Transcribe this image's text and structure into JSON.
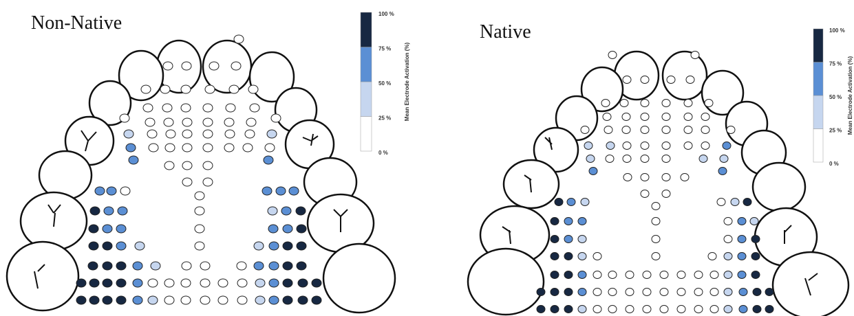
{
  "panels": [
    {
      "title": "Non-Native",
      "legend": {
        "title": "Mean Electrode Activation (%)",
        "ticks": [
          {
            "value": 100,
            "label": "100 %"
          },
          {
            "value": 75,
            "label": "75 %"
          },
          {
            "value": 50,
            "label": "50 %"
          },
          {
            "value": 25,
            "label": "25 %"
          },
          {
            "value": 0,
            "label": "0 %"
          }
        ]
      },
      "activation": [
        0,
        0,
        0,
        0,
        0,
        0,
        0,
        0,
        0,
        0,
        0,
        0,
        0,
        0,
        0,
        0,
        0,
        0,
        0,
        0,
        0,
        0,
        0,
        0,
        0,
        25,
        0,
        0,
        0,
        0,
        0,
        0,
        25,
        50,
        0,
        0,
        0,
        0,
        0,
        0,
        0,
        50,
        50,
        0,
        0,
        0,
        0,
        0,
        50,
        50,
        0,
        50,
        50,
        50,
        0,
        75,
        50,
        50,
        0,
        25,
        50,
        75,
        75,
        50,
        50,
        0,
        50,
        50,
        75,
        75,
        75,
        50,
        25,
        0,
        25,
        50,
        75,
        75,
        75,
        75,
        75,
        50,
        25,
        0,
        0,
        0,
        50,
        50,
        75,
        75,
        75,
        75,
        75,
        75,
        50,
        0,
        0,
        0,
        0,
        0,
        0,
        25,
        50,
        75,
        75,
        75,
        75,
        75,
        75,
        75,
        50,
        25,
        0,
        0,
        0,
        0,
        0,
        25,
        50,
        75,
        75,
        75
      ]
    },
    {
      "title": "Native",
      "legend": {
        "title": "Mean Electrode Activation (%)",
        "ticks": [
          {
            "value": 100,
            "label": "100 %"
          },
          {
            "value": 75,
            "label": "75 %"
          },
          {
            "value": 50,
            "label": "50 %"
          },
          {
            "value": 25,
            "label": "25 %"
          },
          {
            "value": 0,
            "label": "0 %"
          }
        ]
      },
      "activation": [
        0,
        0,
        0,
        0,
        0,
        0,
        0,
        0,
        0,
        0,
        0,
        0,
        0,
        0,
        0,
        0,
        0,
        0,
        0,
        0,
        0,
        0,
        0,
        0,
        0,
        0,
        25,
        25,
        0,
        0,
        0,
        0,
        0,
        50,
        25,
        0,
        0,
        0,
        0,
        25,
        25,
        50,
        50,
        0,
        0,
        0,
        0,
        0,
        0,
        75,
        50,
        25,
        0,
        25,
        75,
        0,
        75,
        50,
        50,
        0,
        0,
        50,
        25,
        75,
        50,
        25,
        0,
        0,
        50,
        75,
        75,
        75,
        25,
        0,
        0,
        0,
        25,
        50,
        75,
        75,
        75,
        50,
        0,
        0,
        0,
        0,
        0,
        0,
        0,
        0,
        25,
        50,
        75,
        75,
        75,
        75,
        50,
        0,
        0,
        0,
        0,
        0,
        0,
        0,
        0,
        25,
        50,
        75,
        75,
        75,
        75,
        75,
        25,
        0,
        0,
        0,
        0,
        0,
        0,
        0,
        0,
        25,
        50,
        75,
        75
      ]
    }
  ],
  "colors": [
    "#ffffff",
    "#c6d6ef",
    "#5b8fd4",
    "#172842"
  ]
}
